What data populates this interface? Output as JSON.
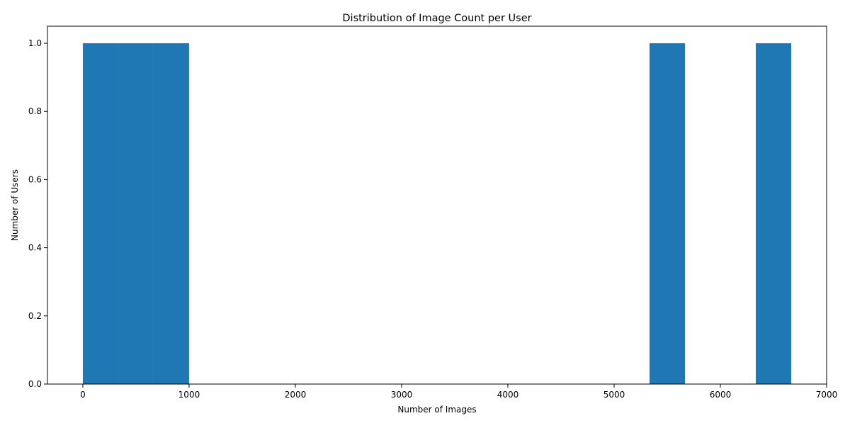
{
  "chart_data": {
    "type": "bar",
    "title": "Distribution of Image Count per User",
    "xlabel": "Number of Images",
    "ylabel": "Number of Users",
    "xlim": [
      -333,
      7000
    ],
    "ylim": [
      0,
      1.05
    ],
    "grid": false,
    "x_ticks": [
      "0",
      "1000",
      "2000",
      "3000",
      "4000",
      "5000",
      "6000",
      "7000"
    ],
    "y_ticks": [
      "0.0",
      "0.2",
      "0.4",
      "0.6",
      "0.8",
      "1.0"
    ],
    "bins": [
      {
        "start": 0,
        "end": 333.3,
        "count": 1
      },
      {
        "start": 333.3,
        "end": 666.7,
        "count": 1
      },
      {
        "start": 666.7,
        "end": 1000,
        "count": 1
      },
      {
        "start": 5333.3,
        "end": 5666.7,
        "count": 1
      },
      {
        "start": 6333.3,
        "end": 6666.7,
        "count": 1
      }
    ],
    "bar_color": "#1f77b4"
  }
}
